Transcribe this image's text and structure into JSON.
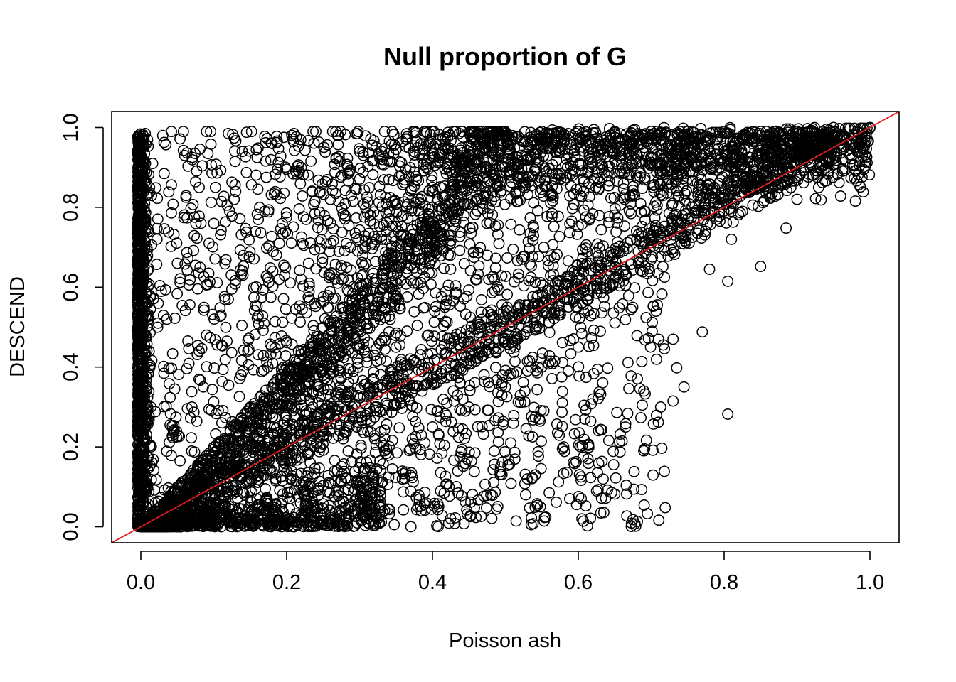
{
  "chart_data": {
    "type": "scatter",
    "title": "Null proportion of G",
    "xlabel": "Poisson ash",
    "ylabel": "DESCEND",
    "xlim": [
      -0.04,
      1.04
    ],
    "ylim": [
      -0.04,
      1.04
    ],
    "x_ticks": [
      "0.0",
      "0.2",
      "0.4",
      "0.6",
      "0.8",
      "1.0"
    ],
    "y_ticks": [
      "0.0",
      "0.2",
      "0.4",
      "0.6",
      "0.8",
      "1.0"
    ],
    "grid": false,
    "legend": "none",
    "marker": "open-circle",
    "point_color": "#000000",
    "reference_line": {
      "intercept": 0,
      "slope": 1,
      "color": "#e31a1c"
    },
    "series_description": "Dense scatter of approximately 10000 genes: large mass at x near 0 across all y; upper band following y ≈ min(1, 2x); cluster near the identity line; sparse points below the diagonal.",
    "points": [
      [
        0.002,
        0.95
      ],
      [
        0.004,
        0.88
      ],
      [
        0.001,
        0.75
      ],
      [
        0.003,
        0.62
      ],
      [
        0.002,
        0.5
      ],
      [
        0.005,
        0.4
      ],
      [
        0.001,
        0.31
      ],
      [
        0.003,
        0.2
      ],
      [
        0.004,
        0.1
      ],
      [
        0.002,
        0.02
      ],
      [
        0.03,
        0.98
      ],
      [
        0.06,
        0.93
      ],
      [
        0.08,
        0.85
      ],
      [
        0.1,
        0.76
      ],
      [
        0.05,
        0.66
      ],
      [
        0.12,
        0.57
      ],
      [
        0.09,
        0.48
      ],
      [
        0.14,
        0.39
      ],
      [
        0.07,
        0.3
      ],
      [
        0.16,
        0.26
      ],
      [
        0.18,
        0.96
      ],
      [
        0.22,
        0.9
      ],
      [
        0.26,
        0.82
      ],
      [
        0.3,
        0.94
      ],
      [
        0.33,
        0.72
      ],
      [
        0.36,
        0.78
      ],
      [
        0.4,
        0.85
      ],
      [
        0.44,
        0.92
      ],
      [
        0.47,
        0.96
      ],
      [
        0.5,
        0.98
      ],
      [
        0.55,
        0.99
      ],
      [
        0.6,
        0.99
      ],
      [
        0.65,
        0.99
      ],
      [
        0.7,
        0.99
      ],
      [
        0.75,
        0.99
      ],
      [
        0.8,
        0.99
      ],
      [
        0.85,
        0.99
      ],
      [
        0.9,
        0.99
      ],
      [
        0.95,
        1.0
      ],
      [
        1.0,
        1.0
      ],
      [
        0.2,
        0.4
      ],
      [
        0.25,
        0.5
      ],
      [
        0.3,
        0.6
      ],
      [
        0.35,
        0.7
      ],
      [
        0.4,
        0.8
      ],
      [
        0.45,
        0.9
      ],
      [
        0.15,
        0.3
      ],
      [
        0.1,
        0.2
      ],
      [
        0.05,
        0.1
      ],
      [
        0.22,
        0.44
      ],
      [
        0.25,
        0.25
      ],
      [
        0.35,
        0.35
      ],
      [
        0.45,
        0.45
      ],
      [
        0.55,
        0.55
      ],
      [
        0.65,
        0.65
      ],
      [
        0.75,
        0.75
      ],
      [
        0.85,
        0.85
      ],
      [
        0.9,
        0.88
      ],
      [
        0.7,
        0.67
      ],
      [
        0.6,
        0.58
      ],
      [
        0.4,
        0.25
      ],
      [
        0.45,
        0.3
      ],
      [
        0.5,
        0.35
      ],
      [
        0.55,
        0.4
      ],
      [
        0.6,
        0.45
      ],
      [
        0.62,
        0.32
      ],
      [
        0.58,
        0.2
      ],
      [
        0.53,
        0.12
      ],
      [
        0.48,
        0.08
      ],
      [
        0.38,
        0.05
      ],
      [
        0.605,
        0.02
      ],
      [
        0.675,
        0.018
      ],
      [
        0.64,
        0.092
      ],
      [
        0.65,
        0.082
      ],
      [
        0.66,
        0.215
      ],
      [
        0.665,
        0.258
      ],
      [
        0.69,
        0.34
      ],
      [
        0.73,
        0.315
      ],
      [
        0.745,
        0.35
      ],
      [
        0.735,
        0.398
      ],
      [
        0.805,
        0.282
      ],
      [
        0.77,
        0.488
      ],
      [
        0.71,
        0.47
      ],
      [
        0.73,
        0.47
      ],
      [
        0.805,
        0.615
      ],
      [
        0.85,
        0.652
      ],
      [
        0.885,
        0.748
      ],
      [
        0.81,
        0.72
      ],
      [
        0.9,
        0.82
      ],
      [
        0.78,
        0.645
      ],
      [
        0.28,
        0.05
      ],
      [
        0.31,
        0.03
      ],
      [
        0.22,
        0.03
      ],
      [
        0.12,
        0.02
      ],
      [
        0.18,
        0.01
      ],
      [
        0.33,
        0.94
      ],
      [
        0.35,
        0.945
      ],
      [
        0.27,
        0.98
      ],
      [
        0.24,
        0.99
      ],
      [
        0.21,
        0.985
      ],
      [
        0.12,
        0.985
      ],
      [
        0.09,
        0.99
      ],
      [
        0.13,
        0.84
      ],
      [
        0.17,
        0.79
      ],
      [
        0.19,
        0.71
      ],
      [
        0.23,
        0.66
      ],
      [
        0.27,
        0.61
      ],
      [
        0.14,
        0.63
      ],
      [
        0.11,
        0.53
      ],
      [
        0.08,
        0.44
      ]
    ]
  }
}
